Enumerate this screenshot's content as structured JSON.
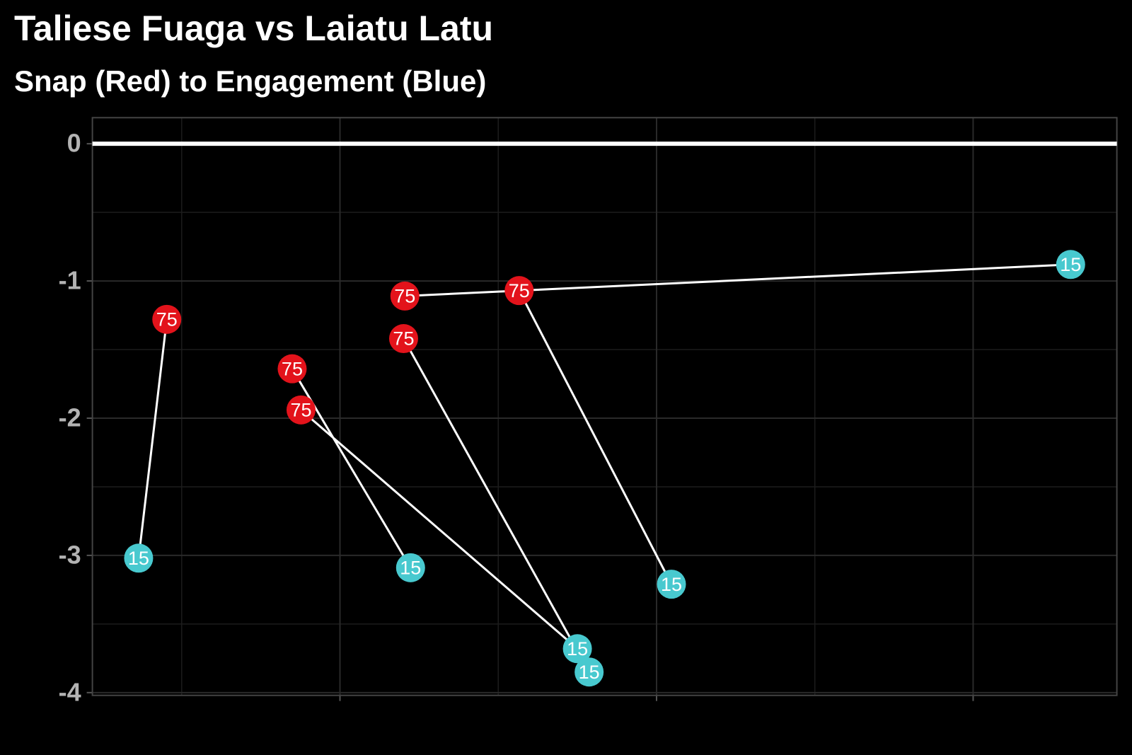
{
  "chart_data": {
    "type": "segment",
    "title": "Taliese Fuaga vs Laiatu Latu",
    "subtitle": "Snap (Red) to Engagement (Blue)",
    "series": [
      {
        "color": "#e3131b",
        "x": [
          0.453,
          0.849,
          0.877,
          1.201,
          1.205,
          1.566
        ],
        "y": [
          -1.28,
          -1.64,
          -1.94,
          -1.42,
          -1.11,
          -1.07
        ],
        "labels": [
          "75",
          "75",
          "75",
          "75",
          "75",
          "75"
        ]
      },
      {
        "color": "#48c9cf",
        "x": [
          0.364,
          1.223,
          1.75,
          1.787,
          3.308,
          2.047
        ],
        "y": [
          -3.02,
          -3.09,
          -3.68,
          -3.85,
          -0.88,
          -3.21
        ],
        "labels": [
          "15",
          "15",
          "15",
          "15",
          "15",
          "15"
        ]
      }
    ],
    "line_color": "#ffffff",
    "hline": 0,
    "xlim": [
      0.218,
      3.454
    ],
    "ylim": [
      -4.02,
      0.19
    ],
    "xticks": [
      1,
      2,
      3
    ],
    "xminorticks": [
      0.5,
      1.5,
      2.5
    ],
    "yticks": [
      0,
      -1,
      -2,
      -3,
      -4
    ],
    "yminorticks": [
      -0.5,
      -1.5,
      -2.5,
      -3.5
    ],
    "grid": true
  }
}
